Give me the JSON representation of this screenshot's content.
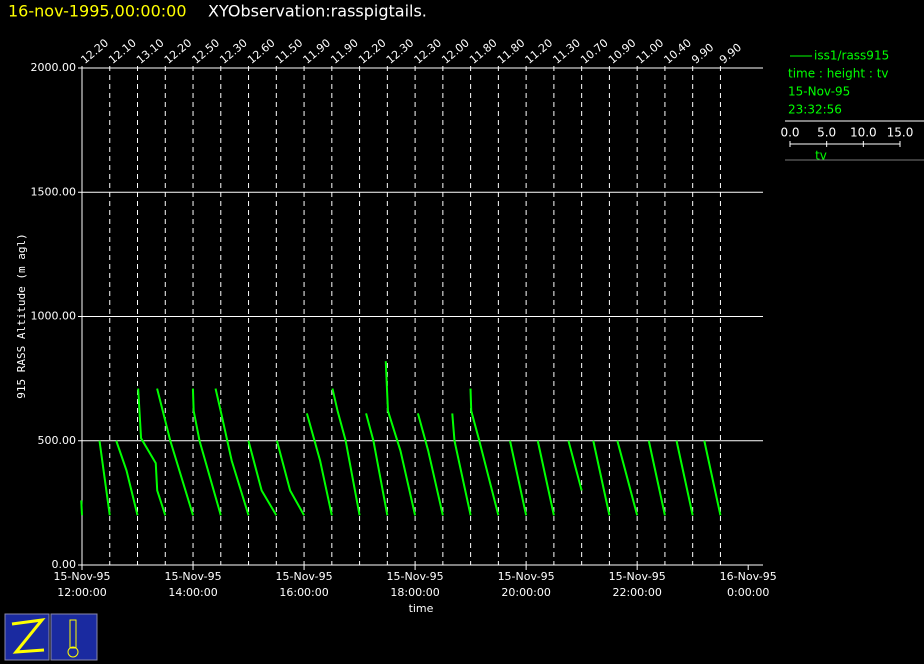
{
  "chart_data": {
    "type": "line",
    "time_title": "16-nov-1995,00:00:00",
    "title": "XYObservation:rasspigtails.",
    "y_label": "915 RASS Altitude (m agl)",
    "x_label": "time",
    "xlim": [
      "1995-11-15T12:00",
      "1995-11-16T00:16"
    ],
    "xticks": [
      {
        "value": "1995-11-15T12:00",
        "label": "15-Nov-95 12:00:00"
      },
      {
        "value": "1995-11-15T14:00",
        "label": "15-Nov-95 14:00:00"
      },
      {
        "value": "1995-11-15T16:00",
        "label": "15-Nov-95 16:00:00"
      },
      {
        "value": "1995-11-15T18:00",
        "label": "15-Nov-95 18:00:00"
      },
      {
        "value": "1995-11-15T20:00",
        "label": "15-Nov-95 20:00:00"
      },
      {
        "value": "1995-11-15T22:00",
        "label": "15-Nov-95 22:00:00"
      },
      {
        "value": "1995-11-16T00:00",
        "label": "16-Nov-95 0:00:00"
      }
    ],
    "ylim": [
      0,
      2000
    ],
    "yticks": [
      {
        "value": 0,
        "label": "0.00"
      },
      {
        "value": 500,
        "label": "500.00"
      },
      {
        "value": 1000,
        "label": "1000.00"
      },
      {
        "value": 1500,
        "label": "1500.00"
      },
      {
        "value": 2000,
        "label": "2000.00"
      }
    ],
    "grid": true,
    "color": "#00ff00",
    "series_name": "iss1/rass915",
    "legend_fields": "time : height : tv",
    "legend_date": "15-Nov-95",
    "legend_time": "23:32:56",
    "key": {
      "label": "tv",
      "xlim": [
        0,
        15
      ],
      "xticks": [
        {
          "value": 0,
          "label": "0.0"
        },
        {
          "value": 5,
          "label": "5.0"
        },
        {
          "value": 10,
          "label": "10.0"
        },
        {
          "value": 15,
          "label": "15.0"
        }
      ]
    },
    "profiles": [
      {
        "x": "1995-11-15T12:00",
        "label": "12.20",
        "height": [
          200,
          260
        ],
        "tv": [
          12.2,
          12.1
        ]
      },
      {
        "x": "1995-11-15T12:30",
        "label": "12.10",
        "height": [
          200,
          500
        ],
        "tv": [
          12.1,
          10.7
        ]
      },
      {
        "x": "1995-11-15T13:00",
        "label": "13.10",
        "height": [
          200,
          380,
          500
        ],
        "tv": [
          13.1,
          11.6,
          10.2
        ]
      },
      {
        "x": "1995-11-15T13:30",
        "label": "12.20",
        "height": [
          200,
          300,
          410,
          510,
          710
        ],
        "tv": [
          12.2,
          11.1,
          10.9,
          8.9,
          8.5
        ]
      },
      {
        "x": "1995-11-15T14:00",
        "label": "12.50",
        "height": [
          200,
          500,
          710
        ],
        "tv": [
          12.5,
          9.4,
          7.6
        ]
      },
      {
        "x": "1995-11-15T14:30",
        "label": "12.30",
        "height": [
          200,
          500,
          620,
          710
        ],
        "tv": [
          12.3,
          9.4,
          8.6,
          8.5
        ]
      },
      {
        "x": "1995-11-15T15:00",
        "label": "12.60",
        "height": [
          200,
          420,
          620,
          710
        ],
        "tv": [
          12.6,
          10.3,
          8.8,
          8.1
        ]
      },
      {
        "x": "1995-11-15T15:30",
        "label": "11.50",
        "height": [
          200,
          300,
          500
        ],
        "tv": [
          11.5,
          9.5,
          7.7
        ]
      },
      {
        "x": "1995-11-15T16:00",
        "label": "11.90",
        "height": [
          200,
          300,
          500
        ],
        "tv": [
          11.9,
          10.0,
          8.2
        ]
      },
      {
        "x": "1995-11-15T16:30",
        "label": "11.90",
        "height": [
          200,
          420,
          610
        ],
        "tv": [
          11.9,
          10.3,
          8.5
        ]
      },
      {
        "x": "1995-11-15T17:00",
        "label": "12.20",
        "height": [
          200,
          500,
          620,
          710
        ],
        "tv": [
          12.2,
          10.3,
          9.2,
          8.5
        ]
      },
      {
        "x": "1995-11-15T17:30",
        "label": "12.30",
        "height": [
          200,
          500,
          610
        ],
        "tv": [
          12.3,
          10.4,
          9.4
        ]
      },
      {
        "x": "1995-11-15T18:00",
        "label": "12.30",
        "height": [
          200,
          460,
          620,
          820
        ],
        "tv": [
          12.3,
          10.3,
          8.6,
          8.3
        ]
      },
      {
        "x": "1995-11-15T18:30",
        "label": "12.00",
        "height": [
          200,
          460,
          610
        ],
        "tv": [
          12.0,
          10.0,
          8.6
        ]
      },
      {
        "x": "1995-11-15T19:00",
        "label": "11.80",
        "height": [
          200,
          500,
          610
        ],
        "tv": [
          11.8,
          9.6,
          9.3
        ]
      },
      {
        "x": "1995-11-15T19:30",
        "label": "11.80",
        "height": [
          200,
          500,
          620,
          710
        ],
        "tv": [
          11.8,
          9.2,
          8.1,
          8.0
        ]
      },
      {
        "x": "1995-11-15T20:00",
        "label": "11.20",
        "height": [
          200,
          500
        ],
        "tv": [
          11.2,
          9.0
        ]
      },
      {
        "x": "1995-11-15T20:30",
        "label": "11.30",
        "height": [
          200,
          500
        ],
        "tv": [
          11.3,
          9.1
        ]
      },
      {
        "x": "1995-11-15T21:00",
        "label": "10.70",
        "height": [
          300,
          500
        ],
        "tv": [
          10.7,
          8.9
        ]
      },
      {
        "x": "1995-11-15T21:30",
        "label": "10.90",
        "height": [
          200,
          500
        ],
        "tv": [
          10.9,
          8.7
        ]
      },
      {
        "x": "1995-11-15T22:00",
        "label": "11.00",
        "height": [
          200,
          500
        ],
        "tv": [
          11.0,
          8.3
        ]
      },
      {
        "x": "1995-11-15T22:30",
        "label": "10.40",
        "height": [
          200,
          500
        ],
        "tv": [
          10.4,
          8.2
        ]
      },
      {
        "x": "1995-11-15T23:00",
        "label": "9.90",
        "height": [
          200,
          500
        ],
        "tv": [
          9.9,
          7.7
        ]
      },
      {
        "x": "1995-11-15T23:30",
        "label": "9.90",
        "height": [
          200,
          500
        ],
        "tv": [
          9.9,
          7.7
        ]
      }
    ]
  }
}
